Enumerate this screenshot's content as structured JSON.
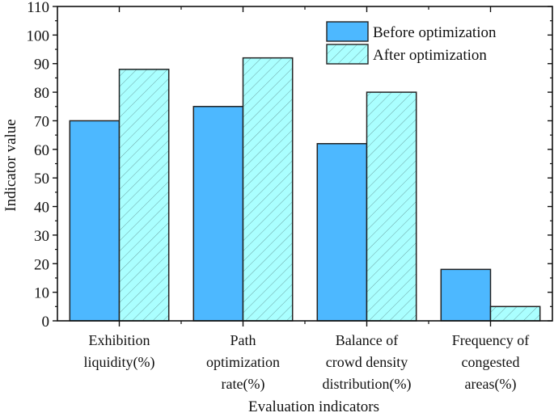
{
  "chart_data": {
    "type": "bar",
    "title": "",
    "xlabel": "Evaluation indicators",
    "ylabel": "Indicator value",
    "ylim": [
      0,
      110
    ],
    "yticks": [
      0,
      10,
      20,
      30,
      40,
      50,
      60,
      70,
      80,
      90,
      100,
      110
    ],
    "grid": false,
    "legend_position": "top-right",
    "categories": [
      [
        "Exhibition",
        "liquidity(%)"
      ],
      [
        "Path",
        "optimization",
        "rate(%)"
      ],
      [
        "Balance of",
        "crowd density",
        "distribution(%)"
      ],
      [
        "Frequency of",
        "congested",
        "areas(%)"
      ]
    ],
    "series": [
      {
        "name": "Before optimization",
        "values": [
          70,
          75,
          62,
          18
        ],
        "color": "#4db8ff",
        "pattern": "solid"
      },
      {
        "name": "After optimization",
        "values": [
          88,
          92,
          80,
          5
        ],
        "color": "#aaffff",
        "pattern": "hatch"
      }
    ]
  }
}
